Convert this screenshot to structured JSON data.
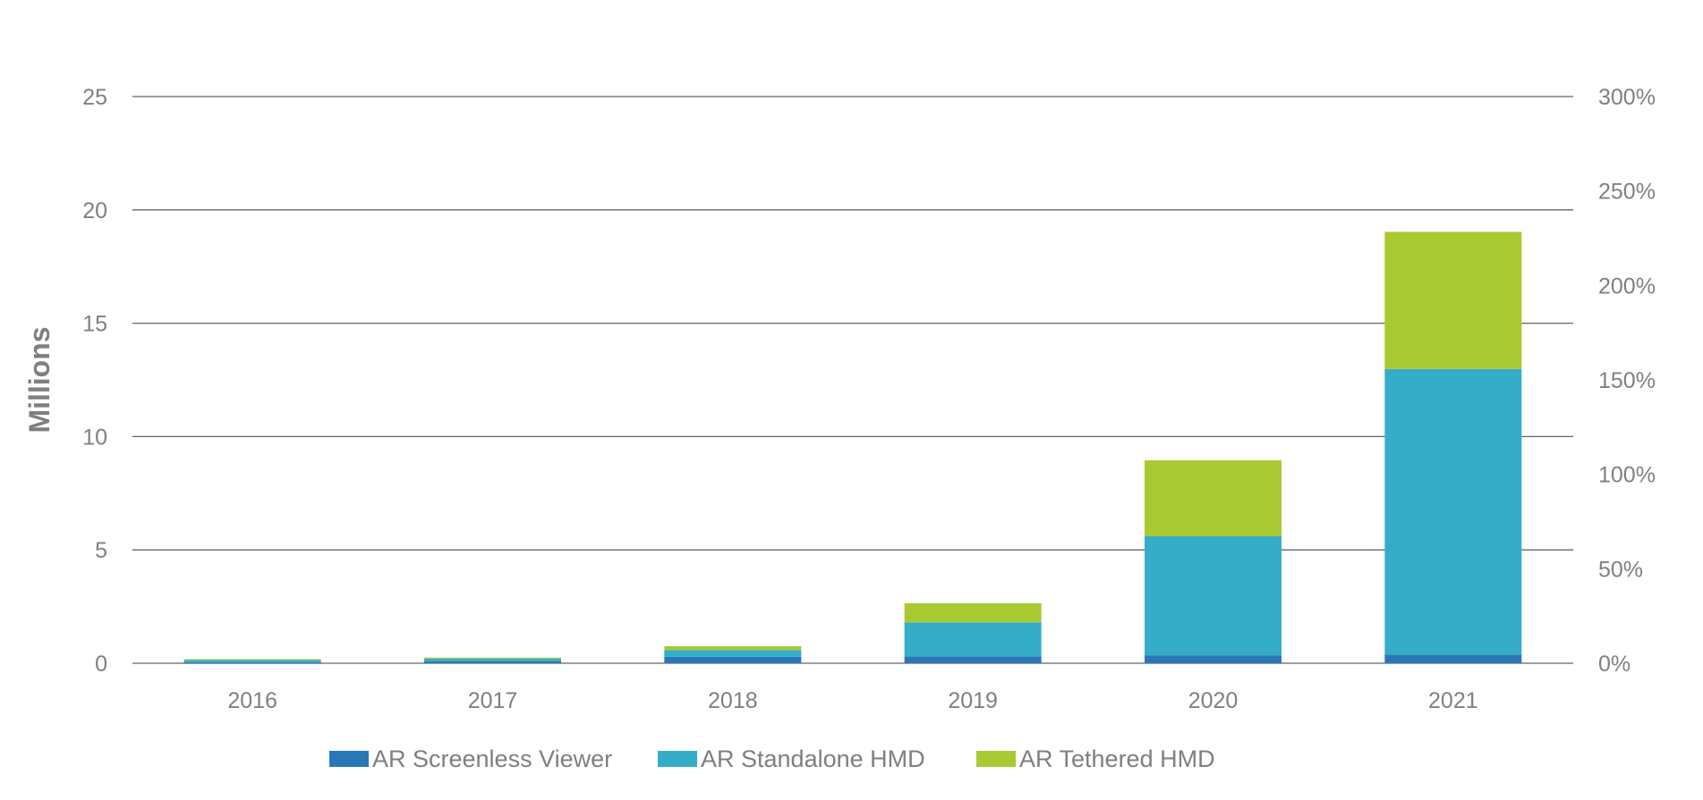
{
  "chart_data": {
    "type": "bar",
    "stacked": true,
    "categories": [
      "2016",
      "2017",
      "2018",
      "2019",
      "2020",
      "2021"
    ],
    "series": [
      {
        "name": "AR Screenless Viewer",
        "color": "#2a77b8",
        "values": [
          0.05,
          0.08,
          0.28,
          0.3,
          0.35,
          0.38
        ]
      },
      {
        "name": "AR Standalone HMD",
        "color": "#35adc8",
        "values": [
          0.1,
          0.12,
          0.3,
          1.5,
          5.25,
          12.6
        ]
      },
      {
        "name": "AR Tethered HMD",
        "color": "#a9c933",
        "values": [
          0.03,
          0.05,
          0.17,
          0.85,
          3.35,
          6.05
        ]
      }
    ],
    "ylabel": "Millions",
    "ylim": [
      0,
      25
    ],
    "yticks": [
      0,
      5,
      10,
      15,
      20,
      25
    ],
    "y2lim": [
      0,
      300
    ],
    "y2ticks": [
      "0%",
      "50%",
      "100%",
      "150%",
      "200%",
      "250%",
      "300%"
    ],
    "grid": true,
    "legend_position": "bottom-center"
  }
}
